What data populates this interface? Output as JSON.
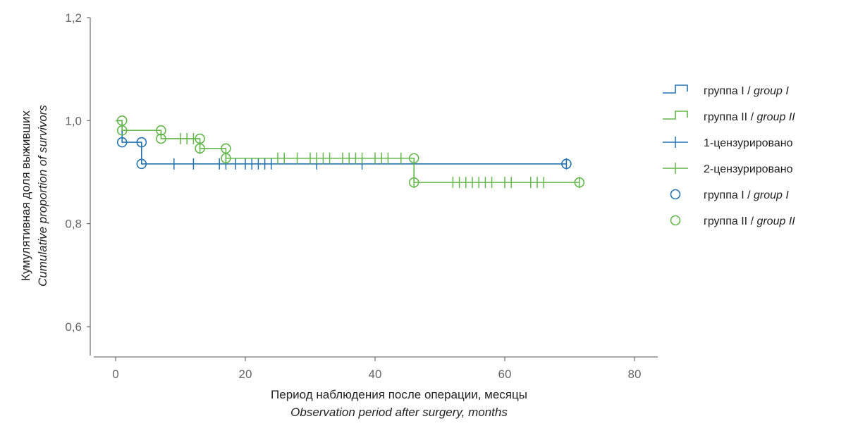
{
  "chart_data": {
    "type": "line",
    "subtype": "kaplan-meier",
    "ylabel": "Кумулятивная доля выживших",
    "ylabel_en": "Cumulative proportion of survivors",
    "xlabel": "Период наблюдения после операции, месяцы",
    "xlabel_en": "Observation period after surgery, months",
    "xlim": [
      -3,
      84
    ],
    "ylim": [
      0.55,
      1.2
    ],
    "x_ticks": [
      0,
      20,
      40,
      60,
      80
    ],
    "x_tick_labels": [
      "0",
      "20",
      "40",
      "60",
      "80"
    ],
    "y_ticks": [
      0.6,
      0.8,
      1.0,
      1.2
    ],
    "y_tick_labels": [
      "0,6",
      "0,8",
      "1,0",
      "1,2"
    ],
    "grid": false,
    "legend_position": "right",
    "colors": {
      "group1": "#2473b0",
      "group2": "#63b64a"
    },
    "series": [
      {
        "name": "группа I",
        "name_en": "group I",
        "color": "#2473b0",
        "steps": [
          [
            0,
            1.0
          ],
          [
            1,
            0.958
          ],
          [
            4,
            0.916
          ],
          [
            69.5,
            0.916
          ]
        ],
        "censored": [
          9,
          12,
          16,
          17,
          18.5,
          20,
          21,
          22,
          23,
          24,
          31,
          38,
          69.5
        ],
        "events": [
          [
            1,
            0.958
          ],
          [
            4,
            0.958
          ],
          [
            4,
            0.916
          ],
          [
            69.5,
            0.916
          ]
        ]
      },
      {
        "name": "группа II",
        "name_en": "group II",
        "color": "#63b64a",
        "steps": [
          [
            0,
            1.0
          ],
          [
            1,
            0.981
          ],
          [
            7,
            0.965
          ],
          [
            13,
            0.946
          ],
          [
            17,
            0.927
          ],
          [
            46,
            0.88
          ],
          [
            71.5,
            0.88
          ]
        ],
        "censored": [
          10,
          11,
          12,
          13,
          17,
          25,
          26,
          28,
          30,
          31,
          32,
          33,
          35,
          36,
          37,
          38,
          40,
          41,
          42,
          44,
          46,
          52,
          53,
          54,
          55,
          56,
          57,
          58,
          60,
          61,
          64,
          65,
          66,
          71.5
        ],
        "events": [
          [
            1,
            1.0
          ],
          [
            1,
            0.981
          ],
          [
            7,
            0.981
          ],
          [
            7,
            0.965
          ],
          [
            13,
            0.965
          ],
          [
            13,
            0.946
          ],
          [
            17,
            0.946
          ],
          [
            17,
            0.927
          ],
          [
            46,
            0.927
          ],
          [
            46,
            0.88
          ],
          [
            71.5,
            0.88
          ]
        ]
      }
    ],
    "legend": [
      {
        "label": "группа I / ",
        "label_en": "group I",
        "marker": "step",
        "color": "#2473b0"
      },
      {
        "label": "группа II / ",
        "label_en": "group II",
        "marker": "step",
        "color": "#63b64a"
      },
      {
        "label": "1-цензурировано",
        "label_en": "",
        "marker": "plus",
        "color": "#2473b0"
      },
      {
        "label": "2-цензурировано",
        "label_en": "",
        "marker": "plus",
        "color": "#63b64a"
      },
      {
        "label": "группа I / ",
        "label_en": "group I",
        "marker": "circle",
        "color": "#2473b0"
      },
      {
        "label": "группа II / ",
        "label_en": "group II",
        "marker": "circle",
        "color": "#63b64a"
      }
    ]
  }
}
